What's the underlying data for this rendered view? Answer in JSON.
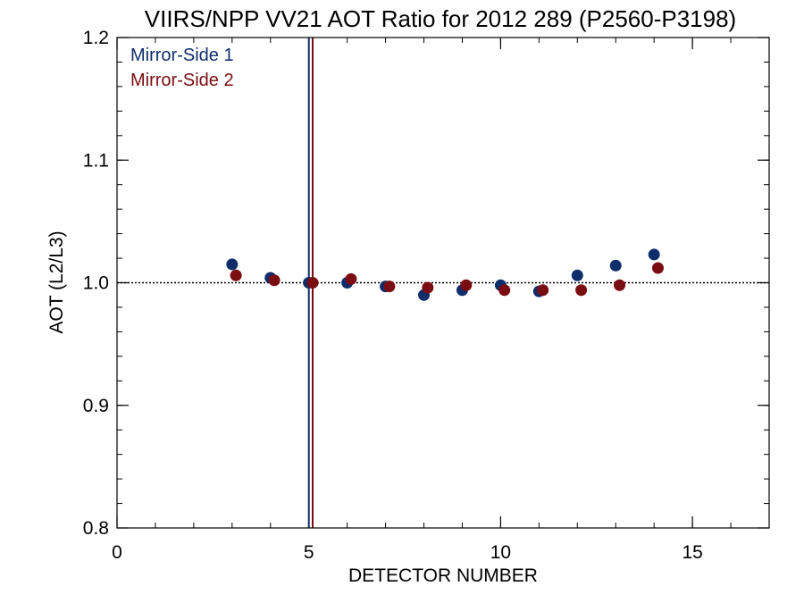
{
  "chart_data": {
    "type": "scatter",
    "title": "VIIRS/NPP VV21 AOT Ratio for 2012 289 (P2560-P3198)",
    "xlabel": "DETECTOR NUMBER",
    "ylabel": "AOT (L2/L3)",
    "xlim": [
      0,
      17
    ],
    "ylim": [
      0.8,
      1.2
    ],
    "x_ticks": [
      0,
      5,
      10,
      15
    ],
    "x_tick_labels": [
      "0",
      "5",
      "10",
      "15"
    ],
    "x_minor_step": 1,
    "y_ticks": [
      0.8,
      0.9,
      1.0,
      1.1,
      1.2
    ],
    "y_tick_labels": [
      "0.8",
      "0.9",
      "1.0",
      "1.1",
      "1.2"
    ],
    "y_minor_step": 0.02,
    "reference_line": 1.0,
    "legend_position": "top-left",
    "series": [
      {
        "name": "Mirror-Side 1",
        "color": "#0d2d6b",
        "marker_line_x": 5.0,
        "x": [
          3,
          4,
          5,
          6,
          7,
          8,
          9,
          10,
          11,
          12,
          13,
          14
        ],
        "y": [
          1.015,
          1.004,
          1.0,
          1.0,
          0.997,
          0.99,
          0.994,
          0.998,
          0.993,
          1.006,
          1.014,
          1.023
        ]
      },
      {
        "name": "Mirror-Side 2",
        "color": "#7a0d12",
        "marker_line_x": 5.1,
        "x": [
          3.1,
          4.1,
          5.1,
          6.1,
          7.1,
          8.1,
          9.1,
          10.1,
          11.1,
          12.1,
          13.1,
          14.1
        ],
        "y": [
          1.006,
          1.002,
          1.0,
          1.003,
          0.997,
          0.996,
          0.998,
          0.994,
          0.994,
          0.994,
          0.998,
          1.012
        ]
      }
    ]
  }
}
